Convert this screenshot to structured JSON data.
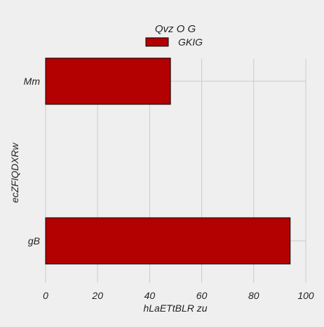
{
  "chart_data": {
    "type": "bar",
    "orientation": "horizontal",
    "categories": [
      "Mm",
      "gB"
    ],
    "series": [
      {
        "name": "GKIG",
        "values": [
          48,
          94
        ],
        "color": "#b30000"
      }
    ],
    "legend_title": "Qvz O G",
    "xlabel": "hLaETtBLR zu",
    "ylabel": "ecZFlQDXRw",
    "xlim": [
      0,
      100
    ],
    "xticks": [
      0,
      20,
      40,
      60,
      80,
      100
    ],
    "xtick_labels": [
      "0",
      "20",
      "40",
      "60",
      "80",
      "100"
    ],
    "grid": true,
    "legend_position": "top"
  },
  "colors": {
    "background": "#efefef",
    "grid": "#cbcbcb",
    "bar_edge": "#000000",
    "text": "#222222"
  }
}
